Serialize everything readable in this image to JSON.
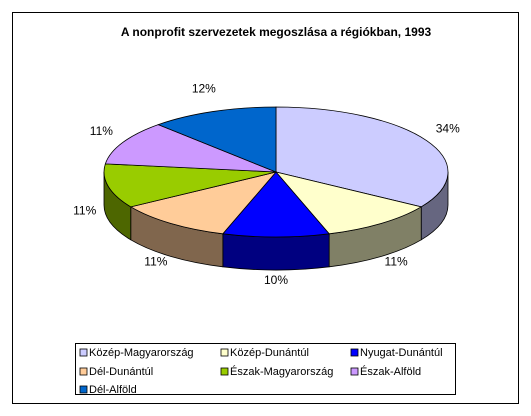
{
  "chart_data": {
    "type": "pie",
    "title": "A nonprofit szervezetek megoszlása a régiókban, 1993",
    "categories": [
      "Közép-Magyarország",
      "Közép-Dunántúl",
      "Nyugat-Dunántúl",
      "Dél-Dunántúl",
      "Észak-Magyarország",
      "Észak-Alföld",
      "Dél-Alföld"
    ],
    "values": [
      34,
      11,
      10,
      11,
      11,
      11,
      12
    ],
    "value_labels": [
      "34%",
      "11%",
      "10%",
      "11%",
      "11%",
      "11%",
      "12%"
    ],
    "colors": [
      "#ccccff",
      "#ffffcc",
      "#0000ff",
      "#ffcc99",
      "#99cc00",
      "#cc99ff",
      "#0066cc"
    ],
    "legend": "bottom"
  }
}
